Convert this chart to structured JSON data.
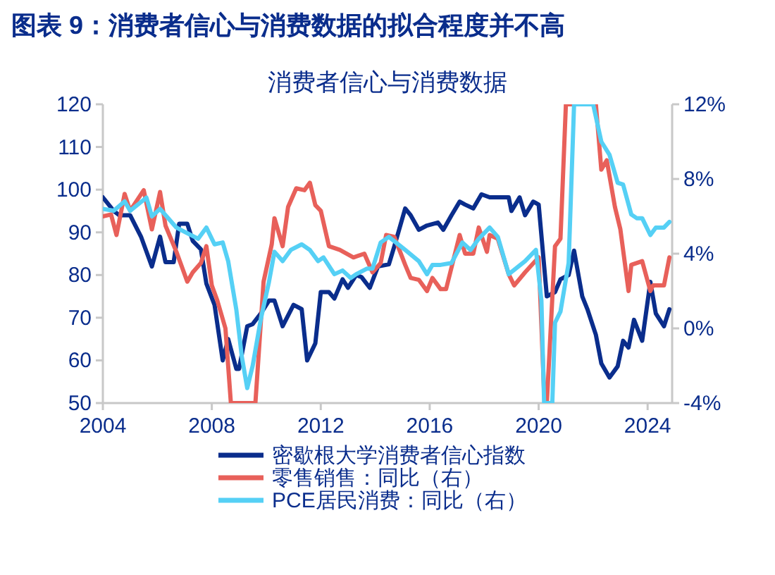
{
  "chart_data": {
    "type": "line",
    "title": "图表 9：消费者信心与消费数据的拟合程度并不高",
    "subtitle": "消费者信心与消费数据",
    "xlim": [
      2004,
      2024.9
    ],
    "xticks": [
      2004,
      2008,
      2012,
      2016,
      2020,
      2024
    ],
    "ylim": [
      50,
      120
    ],
    "yticks": [
      50,
      60,
      70,
      80,
      90,
      100,
      110,
      120
    ],
    "y2lim": [
      -4,
      12
    ],
    "y2ticks": [
      {
        "value": -4,
        "label": "-4%"
      },
      {
        "value": 0,
        "label": "0%"
      },
      {
        "value": 4,
        "label": "4%"
      },
      {
        "value": 8,
        "label": "8%"
      },
      {
        "value": 12,
        "label": "12%"
      }
    ],
    "grid": false,
    "legend": "bottom",
    "marker": "none",
    "line_style": "solid",
    "series": [
      {
        "name": "密歇根大学消费者信心指数",
        "color": "#0a2d8c",
        "x": [
          2004.0,
          2004.4,
          2004.6,
          2005.0,
          2005.4,
          2005.8,
          2006.1,
          2006.3,
          2006.6,
          2006.8,
          2007.1,
          2007.3,
          2007.6,
          2007.8,
          2008.1,
          2008.4,
          2008.6,
          2008.9,
          2009.0,
          2009.3,
          2009.5,
          2009.8,
          2010.1,
          2010.3,
          2010.6,
          2011.0,
          2011.3,
          2011.5,
          2011.8,
          2012.0,
          2012.3,
          2012.5,
          2012.8,
          2013.0,
          2013.3,
          2013.5,
          2013.8,
          2014.1,
          2014.5,
          2014.7,
          2015.1,
          2015.3,
          2015.6,
          2015.9,
          2016.3,
          2016.5,
          2016.8,
          2017.1,
          2017.3,
          2017.6,
          2017.9,
          2018.2,
          2018.5,
          2018.9,
          2019.0,
          2019.3,
          2019.5,
          2019.8,
          2020.0,
          2020.3,
          2020.6,
          2020.8,
          2021.1,
          2021.3,
          2021.6,
          2021.8,
          2022.1,
          2022.3,
          2022.6,
          2022.9,
          2023.1,
          2023.3,
          2023.5,
          2023.8,
          2024.1,
          2024.3,
          2024.6,
          2024.8
        ],
        "values": [
          98.2,
          95,
          94,
          94,
          89,
          82,
          89,
          83,
          83,
          92,
          92,
          88,
          86,
          78,
          73,
          60,
          65,
          58,
          58,
          68,
          68.5,
          71,
          74,
          74,
          68,
          73,
          72,
          60,
          64,
          76,
          76,
          74.5,
          79,
          77,
          80,
          79.5,
          77,
          82,
          82.5,
          86.7,
          95.6,
          94,
          90.6,
          91.6,
          92.3,
          90.6,
          94,
          97.2,
          96.5,
          95.6,
          98.9,
          98.2,
          98.2,
          98.2,
          95,
          98.2,
          94,
          97.2,
          96.5,
          75,
          76,
          79,
          80,
          85.7,
          75,
          71.8,
          66,
          59.3,
          56,
          58.6,
          64.6,
          63,
          69.5,
          64.6,
          78.4,
          71,
          68,
          72
        ]
      },
      {
        "name": "零售销售：同比（右）",
        "color": "#e8605a",
        "axis": "y2",
        "x": [
          2004.0,
          2004.3,
          2004.5,
          2004.8,
          2005.0,
          2005.5,
          2005.8,
          2006.1,
          2006.3,
          2006.7,
          2007.1,
          2007.3,
          2007.6,
          2007.8,
          2008.0,
          2008.2,
          2008.5,
          2008.7,
          2009.6,
          2009.9,
          2010.2,
          2010.3,
          2010.6,
          2010.8,
          2011.1,
          2011.4,
          2011.6,
          2011.8,
          2012.0,
          2012.3,
          2012.7,
          2013.2,
          2013.6,
          2013.9,
          2014.2,
          2014.4,
          2014.7,
          2015.1,
          2015.3,
          2015.6,
          2015.9,
          2016.1,
          2016.4,
          2016.6,
          2017.1,
          2017.3,
          2017.6,
          2017.8,
          2018.1,
          2018.2,
          2018.5,
          2018.9,
          2019.1,
          2019.5,
          2020.0,
          2020.2,
          2020.3,
          2020.6,
          2020.8,
          2021.0,
          2022.1,
          2022.3,
          2022.5,
          2022.8,
          2023.0,
          2023.3,
          2023.4,
          2023.8,
          2024.1,
          2024.2,
          2024.6,
          2024.8
        ],
        "values": [
          6.0,
          6.1,
          5.0,
          7.2,
          6.3,
          7.4,
          5.3,
          7.3,
          5.5,
          4.1,
          2.5,
          3.0,
          3.5,
          4.4,
          2.3,
          1.5,
          0.0,
          -4,
          -4,
          2.5,
          4.5,
          5.9,
          4.4,
          6.5,
          7.5,
          7.4,
          7.8,
          6.6,
          6.3,
          4.4,
          4.2,
          3.8,
          4.0,
          3.0,
          3.5,
          5.0,
          4.9,
          3.4,
          2.7,
          2.6,
          2.0,
          2.7,
          2.1,
          2.1,
          5.0,
          4.0,
          4.0,
          5.4,
          4.1,
          5.0,
          4.8,
          2.9,
          2.3,
          3.0,
          3.8,
          -3.5,
          -4,
          4.4,
          4.8,
          12,
          12,
          8.5,
          9.0,
          6.5,
          5.3,
          2.0,
          3.4,
          3.6,
          2.0,
          2.3,
          2.3,
          3.8
        ]
      },
      {
        "name": "PCE居民消费：同比（右）",
        "color": "#55d0f5",
        "axis": "y2",
        "x": [
          2004.0,
          2004.4,
          2004.8,
          2005.0,
          2005.6,
          2005.8,
          2006.1,
          2006.7,
          2007.5,
          2007.8,
          2008.1,
          2008.4,
          2008.6,
          2008.9,
          2009.1,
          2009.3,
          2009.5,
          2009.8,
          2010.1,
          2010.3,
          2010.6,
          2010.9,
          2011.3,
          2011.6,
          2011.9,
          2012.1,
          2012.5,
          2012.8,
          2013.1,
          2013.3,
          2013.7,
          2013.9,
          2014.2,
          2014.5,
          2015.1,
          2015.6,
          2015.9,
          2016.1,
          2016.4,
          2016.8,
          2017.2,
          2017.5,
          2017.8,
          2018.2,
          2018.5,
          2018.9,
          2019.5,
          2019.9,
          2020.1,
          2020.2,
          2020.5,
          2020.6,
          2020.8,
          2021.1,
          2021.3,
          2022.0,
          2022.3,
          2022.6,
          2022.9,
          2023.1,
          2023.4,
          2023.6,
          2023.8,
          2024.1,
          2024.3,
          2024.6,
          2024.8
        ],
        "values": [
          6.4,
          6.3,
          6.8,
          6.3,
          7.0,
          6.0,
          6.4,
          5.4,
          4.8,
          5.4,
          4.5,
          4.6,
          3.6,
          1.0,
          -1.5,
          -3.2,
          -2.0,
          0.5,
          2.5,
          4.1,
          3.6,
          4.2,
          4.5,
          4.2,
          3.6,
          3.8,
          2.9,
          3.1,
          2.7,
          2.9,
          3.2,
          3.2,
          4.6,
          4.9,
          4.2,
          3.6,
          2.9,
          3.4,
          3.4,
          3.5,
          4.6,
          4.2,
          4.8,
          5.4,
          4.9,
          2.9,
          3.6,
          4.2,
          1.5,
          -4,
          -4,
          0.3,
          0.9,
          3.5,
          12,
          12,
          10.0,
          9.3,
          7.8,
          7.7,
          6.1,
          5.9,
          5.9,
          5.0,
          5.4,
          5.4,
          5.7
        ]
      }
    ]
  }
}
